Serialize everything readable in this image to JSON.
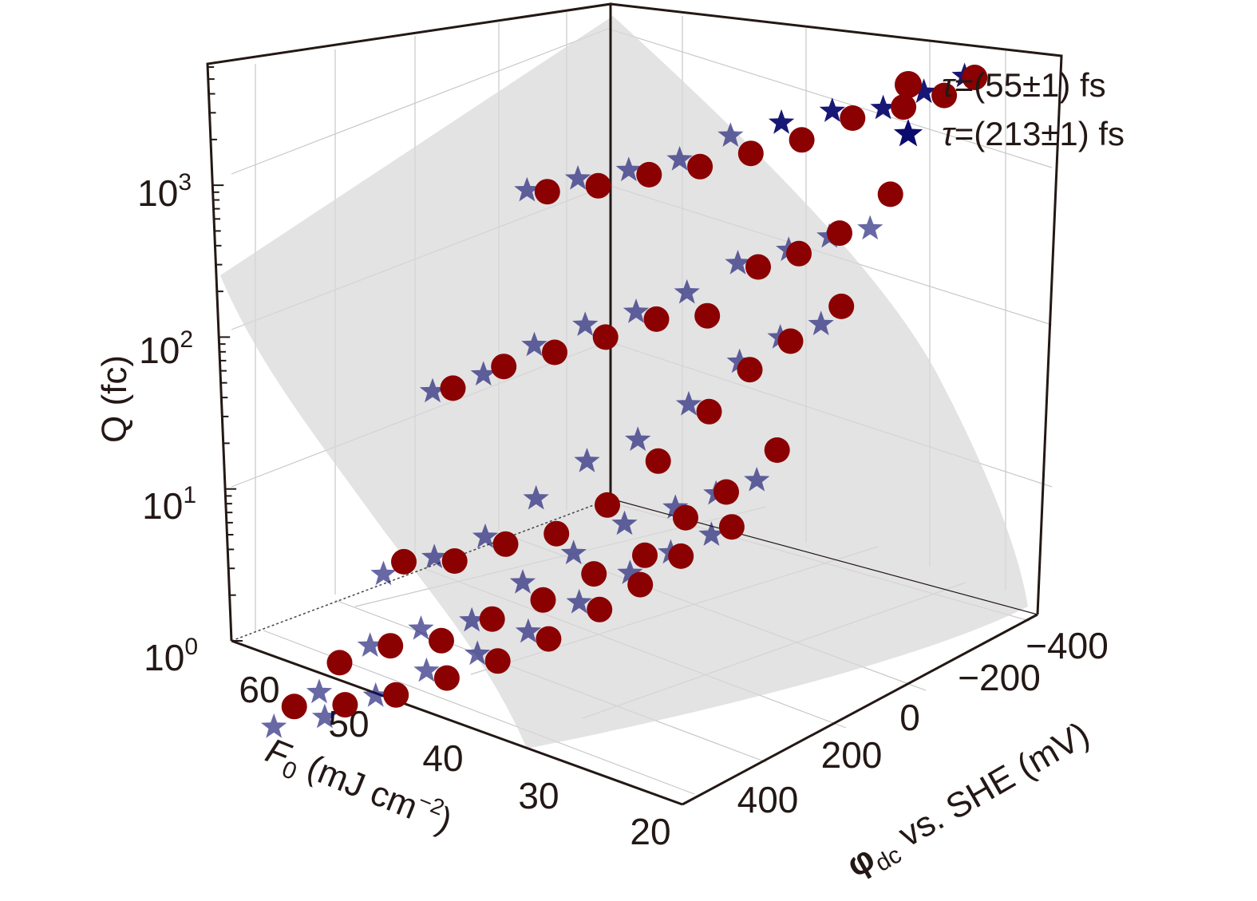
{
  "chart_data": {
    "type": "scatter3d",
    "title": "",
    "zscale": "log",
    "axes": {
      "x": {
        "label_main": "F",
        "label_sub": "0",
        "label_units": " (mJ cm",
        "label_sup": "−2",
        "label_close": ")",
        "ticks": [
          "60",
          "50",
          "40",
          "30",
          "20"
        ],
        "range": [
          18,
          66
        ]
      },
      "y": {
        "label_main": "φ",
        "label_sub": "dc",
        "label_rest": " vs. SHE (mV)",
        "ticks": [
          "400",
          "200",
          "0",
          "−200",
          "−400"
        ],
        "range": [
          -470,
          470
        ]
      },
      "z": {
        "label": "Q (fc)",
        "ticks": [
          {
            "base": "10",
            "exp": "0"
          },
          {
            "base": "10",
            "exp": "1"
          },
          {
            "base": "10",
            "exp": "2"
          },
          {
            "base": "10",
            "exp": "3"
          }
        ],
        "range": [
          1,
          6300
        ]
      }
    },
    "legend": {
      "placement": "top-right",
      "entries": [
        {
          "symbol": "τ",
          "text": "=(55±1) fs",
          "marker": "circle",
          "color": "#8b0000"
        },
        {
          "symbol": "τ",
          "text": "=(213±1) fs",
          "marker": "star",
          "color": "#0b0b6e"
        }
      ]
    },
    "surface": {
      "color": "#d8d8d8",
      "description": "fitted Q(F0, phi_dc) surface"
    },
    "series": [
      {
        "name": "τ=(55±1) fs",
        "marker": "circle",
        "color": "#8b0000",
        "points": [
          {
            "F0": 60,
            "phi": -250,
            "Q": 120
          },
          {
            "F0": 55,
            "phi": -250,
            "Q": 170
          },
          {
            "F0": 50,
            "phi": -250,
            "Q": 260
          },
          {
            "F0": 45,
            "phi": -250,
            "Q": 380
          },
          {
            "F0": 40,
            "phi": -250,
            "Q": 600
          },
          {
            "F0": 35,
            "phi": -250,
            "Q": 950
          },
          {
            "F0": 30,
            "phi": -250,
            "Q": 1700
          },
          {
            "F0": 25,
            "phi": -250,
            "Q": 2600
          },
          {
            "F0": 21,
            "phi": -250,
            "Q": 3800
          },
          {
            "F0": 18,
            "phi": -250,
            "Q": 5800
          },
          {
            "F0": 60,
            "phi": 0,
            "Q": 14
          },
          {
            "F0": 55,
            "phi": 0,
            "Q": 25
          },
          {
            "F0": 50,
            "phi": 0,
            "Q": 40
          },
          {
            "F0": 45,
            "phi": 0,
            "Q": 65
          },
          {
            "F0": 40,
            "phi": 0,
            "Q": 110
          },
          {
            "F0": 35,
            "phi": 0,
            "Q": 150
          },
          {
            "F0": 30,
            "phi": 0,
            "Q": 400
          },
          {
            "F0": 26,
            "phi": 0,
            "Q": 600
          },
          {
            "F0": 22,
            "phi": 0,
            "Q": 1000
          },
          {
            "F0": 17,
            "phi": 0,
            "Q": 2300
          },
          {
            "F0": 60,
            "phi": 130,
            "Q": 1.6
          },
          {
            "F0": 55,
            "phi": 130,
            "Q": 2.1
          },
          {
            "F0": 50,
            "phi": 130,
            "Q": 3.5
          },
          {
            "F0": 45,
            "phi": 130,
            "Q": 5.3
          },
          {
            "F0": 40,
            "phi": 130,
            "Q": 10.5
          },
          {
            "F0": 35,
            "phi": 130,
            "Q": 26
          },
          {
            "F0": 30,
            "phi": 130,
            "Q": 70
          },
          {
            "F0": 26,
            "phi": 130,
            "Q": 160
          },
          {
            "F0": 22,
            "phi": 130,
            "Q": 300
          },
          {
            "F0": 17,
            "phi": 130,
            "Q": 650
          },
          {
            "F0": 60,
            "phi": 300,
            "Q": 0.6
          },
          {
            "F0": 55,
            "phi": 300,
            "Q": 1.0
          },
          {
            "F0": 50,
            "phi": 300,
            "Q": 1.4
          },
          {
            "F0": 45,
            "phi": 300,
            "Q": 2.5
          },
          {
            "F0": 40,
            "phi": 300,
            "Q": 4.3
          },
          {
            "F0": 35,
            "phi": 300,
            "Q": 8.2
          },
          {
            "F0": 30,
            "phi": 300,
            "Q": 14
          },
          {
            "F0": 26,
            "phi": 300,
            "Q": 30
          },
          {
            "F0": 22,
            "phi": 300,
            "Q": 54
          },
          {
            "F0": 17,
            "phi": 300,
            "Q": 130
          },
          {
            "F0": 60,
            "phi": 420,
            "Q": 0.45
          },
          {
            "F0": 55,
            "phi": 420,
            "Q": 0.6
          },
          {
            "F0": 50,
            "phi": 420,
            "Q": 0.9
          },
          {
            "F0": 45,
            "phi": 420,
            "Q": 1.5
          },
          {
            "F0": 40,
            "phi": 420,
            "Q": 2.5
          },
          {
            "F0": 35,
            "phi": 420,
            "Q": 4.5
          },
          {
            "F0": 30,
            "phi": 420,
            "Q": 9
          },
          {
            "F0": 26,
            "phi": 420,
            "Q": 16
          },
          {
            "F0": 22,
            "phi": 420,
            "Q": 30
          },
          {
            "F0": 17,
            "phi": 420,
            "Q": 60
          }
        ]
      },
      {
        "name": "τ=(213±1) fs",
        "marker": "star",
        "color": "#0b0b6e",
        "points": [
          {
            "F0": 62,
            "phi": -250,
            "Q": 110
          },
          {
            "F0": 57,
            "phi": -250,
            "Q": 170
          },
          {
            "F0": 52,
            "phi": -250,
            "Q": 250
          },
          {
            "F0": 47,
            "phi": -250,
            "Q": 380
          },
          {
            "F0": 42,
            "phi": -250,
            "Q": 700
          },
          {
            "F0": 37,
            "phi": -250,
            "Q": 1100
          },
          {
            "F0": 32,
            "phi": -250,
            "Q": 1700
          },
          {
            "F0": 27,
            "phi": -250,
            "Q": 2300
          },
          {
            "F0": 23,
            "phi": -250,
            "Q": 3600
          },
          {
            "F0": 19,
            "phi": -250,
            "Q": 5600
          },
          {
            "F0": 62,
            "phi": 0,
            "Q": 12
          },
          {
            "F0": 57,
            "phi": 0,
            "Q": 20
          },
          {
            "F0": 52,
            "phi": 0,
            "Q": 40
          },
          {
            "F0": 47,
            "phi": 0,
            "Q": 70
          },
          {
            "F0": 42,
            "phi": 0,
            "Q": 110
          },
          {
            "F0": 37,
            "phi": 0,
            "Q": 190
          },
          {
            "F0": 32,
            "phi": 0,
            "Q": 380
          },
          {
            "F0": 27,
            "phi": 0,
            "Q": 600
          },
          {
            "F0": 23,
            "phi": 0,
            "Q": 900
          },
          {
            "F0": 19,
            "phi": 0,
            "Q": 1250
          },
          {
            "F0": 62,
            "phi": 130,
            "Q": 1.2
          },
          {
            "F0": 57,
            "phi": 130,
            "Q": 2.0
          },
          {
            "F0": 52,
            "phi": 130,
            "Q": 3.5
          },
          {
            "F0": 47,
            "phi": 130,
            "Q": 8
          },
          {
            "F0": 42,
            "phi": 130,
            "Q": 18
          },
          {
            "F0": 37,
            "phi": 130,
            "Q": 32
          },
          {
            "F0": 32,
            "phi": 130,
            "Q": 70
          },
          {
            "F0": 27,
            "phi": 130,
            "Q": 170
          },
          {
            "F0": 23,
            "phi": 130,
            "Q": 300
          },
          {
            "F0": 19,
            "phi": 130,
            "Q": 450
          },
          {
            "F0": 62,
            "phi": 300,
            "Q": 0.35
          },
          {
            "F0": 57,
            "phi": 300,
            "Q": 0.9
          },
          {
            "F0": 52,
            "phi": 300,
            "Q": 1.5
          },
          {
            "F0": 47,
            "phi": 300,
            "Q": 2.2
          },
          {
            "F0": 42,
            "phi": 300,
            "Q": 5
          },
          {
            "F0": 37,
            "phi": 300,
            "Q": 10
          },
          {
            "F0": 32,
            "phi": 300,
            "Q": 20
          },
          {
            "F0": 27,
            "phi": 300,
            "Q": 33
          },
          {
            "F0": 23,
            "phi": 300,
            "Q": 50
          },
          {
            "F0": 19,
            "phi": 300,
            "Q": 75
          },
          {
            "F0": 62,
            "phi": 420,
            "Q": 0.3
          },
          {
            "F0": 57,
            "phi": 420,
            "Q": 0.45
          },
          {
            "F0": 52,
            "phi": 420,
            "Q": 0.8
          },
          {
            "F0": 47,
            "phi": 420,
            "Q": 1.5
          },
          {
            "F0": 42,
            "phi": 420,
            "Q": 2.5
          },
          {
            "F0": 37,
            "phi": 420,
            "Q": 4.5
          },
          {
            "F0": 32,
            "phi": 420,
            "Q": 9
          },
          {
            "F0": 27,
            "phi": 420,
            "Q": 18
          },
          {
            "F0": 23,
            "phi": 420,
            "Q": 30
          },
          {
            "F0": 19,
            "phi": 420,
            "Q": 48
          }
        ]
      }
    ]
  }
}
